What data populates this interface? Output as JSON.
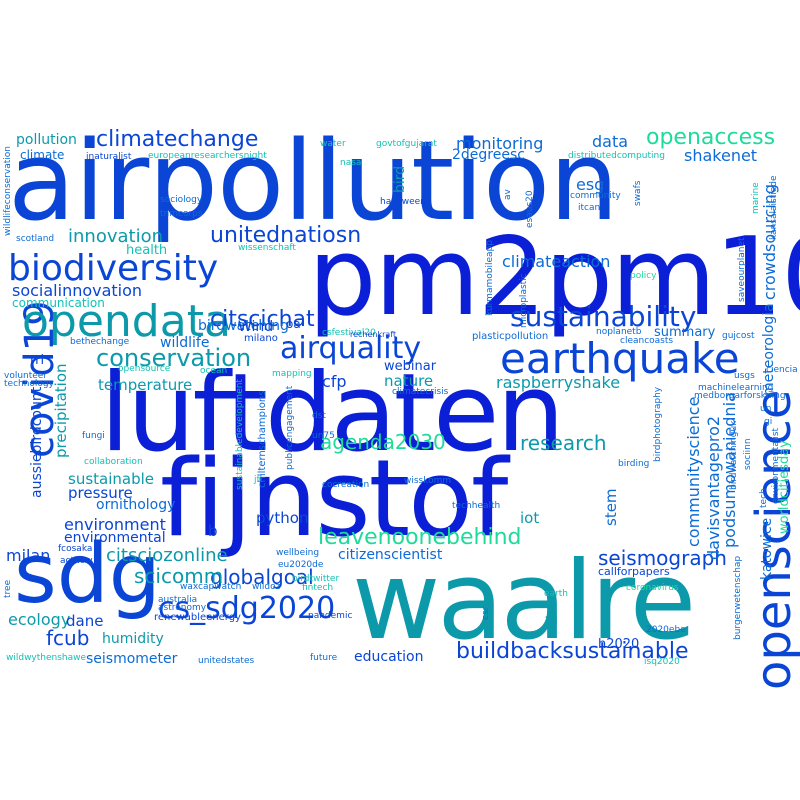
{
  "colors": {
    "blue_dark": "#0a1fd6",
    "blue": "#0a45d6",
    "blue_mid": "#0c6bd6",
    "teal": "#0c9aab",
    "aqua": "#12c2b4",
    "mint": "#1edb9a"
  },
  "words": {
    "airpollution": "airpollution",
    "pm2pm10": "pm2pm10",
    "luftdaten": "luftdaten",
    "fijnstof": "fijnstof",
    "waalre": "waalre",
    "sdg": "sdg",
    "openscience": "openscience",
    "earthquake": "earthquake",
    "opendata": "opendata",
    "biodiversity": "biodiversity",
    "covid19": "covid19",
    "climatechange": "climatechange",
    "openaccess": "openaccess",
    "unitednatiosn": "unitednatiosn",
    "airquality": "airquality",
    "sustainability": "sustainability",
    "citscichat": "citscichat",
    "conservation": "conservation",
    "innovation": "innovation",
    "monitoring": "monitoring",
    "data": "data",
    "shakenet": "shakenet",
    "bird": "bird",
    "esg": "esg",
    "crowdsourcing": "crowdsourcing",
    "climateaction": "climateaction",
    "meteorologia": "meteorologia",
    "cs_sdg2020": "cs_sdg2020",
    "buildbacksustainable": "buildbacksustainable",
    "leavenoonebehind": "leavenoonebehind",
    "seismograph": "seismograph",
    "globalgoal": "globalgoal",
    "scicomm": "scicomm",
    "agenda2030": "agenda2030",
    "research": "research",
    "citsciozonline": "citsciozonline",
    "raspberryshake": "raspberryshake",
    "communityscience": "communityscience",
    "davisvantagepro2": "davisvantagepro2",
    "podsumowaniednia": "podsumowaniednia",
    "katowice": "katowice",
    "worldcitiesday": "worldcitiesday",
    "fcub": "fcub",
    "humidity": "humidity",
    "education": "education",
    "seismometer": "seismometer",
    "ecology": "ecology",
    "dane": "dane",
    "milan": "milan",
    "environment": "environment",
    "environmental": "environmental",
    "sustainable": "sustainable",
    "pressure": "pressure",
    "ornithology": "ornithology",
    "precipitation": "precipitation",
    "aussiebirdcount": "aussiebirdcount",
    "temperature": "temperature",
    "cfp": "cfp",
    "nature": "nature",
    "webinar": "webinar",
    "wildlife": "wildlife",
    "birdwatching": "birdwatching",
    "socialinnovation": "socialinnovation",
    "communication": "communication",
    "health": "health",
    "python": "python",
    "stem": "stem",
    "iot": "iot",
    "ai": "ai",
    "h2020": "h2020",
    "summary": "summary",
    "citizenscientist": "citizenscientist",
    "pollution": "pollution",
    "climate": "climate",
    "2degreesc": "2degreesc",
    "rri": "rri",
    "wind": "Wind",
    "oa": "oa",
    "b": "b",
    "water": "water",
    "csfestival20": "csfestival20",
    "govtofgujarat": "govtofgujarat",
    "inaturalist": "inaturalist",
    "europeanresearchersnight": "europeanresearchersnight",
    "distributedcomputing": "distributedcomputing",
    "nasa": "nasa",
    "sociology": "sociology",
    "halloween": "halloween",
    "tnmcorps": "tnmcorps",
    "community": "community",
    "itcan": "itcan",
    "swafs": "swafs",
    "marine": "marine",
    "kansalaistiede": "kansalaistiede",
    "wissenschaft": "wissenschaft",
    "scotland": "scotland",
    "wildlifeconservation": "wildlifeconservation",
    "milano": "milano",
    "rechenkraft": "rechenkraft",
    "noplanetb": "noplanetb",
    "plasticpollution": "plasticpollution",
    "cleancoasts": "cleancoasts",
    "gujcost": "gujcost",
    "policy": "policy",
    "saveourplanet": "saveourplanet",
    "microplastic": "microplastic",
    "kurmamobileapp": "kurmamobileapp",
    "esaus20": "esaus20",
    "av": "av",
    "bethechange": "bethechange",
    "volunteer": "volunteer",
    "technology": "technology",
    "opensource": "opensource",
    "ocean": "ocean",
    "mapping": "mapping",
    "climatecrisis": "climatecrisis",
    "usgs": "usgs",
    "ciencia": "ciencia",
    "machinelearning": "machinelearning",
    "medborgarforskning": "medborgarforskning",
    "un": "un",
    "gi": "gi",
    "tech": "tech",
    "environmentalist": "environmentalist",
    "sociinn": "sociinn",
    "birdwatchinguk": "birdwatchinguk",
    "birdphotography": "birdphotography",
    "birding": "birding",
    "dst": "dst",
    "un75": "un75",
    "fungi": "fungi",
    "sustainabledevelopment": "sustainabledevelopment",
    "publicengagement": "publicengagement",
    "chilternschampions": "chilternschampions",
    "collaboration": "collaboration",
    "jfl": "jfl",
    "cocreation": "cocreation",
    "wisskomm": "wisskomm",
    "techhealth": "techhealth",
    "fcosaka": "fcosaka",
    "actnow": "actnow",
    "wellbeing": "wellbeing",
    "eu2020de": "eu2020de",
    "waxcapwatch": "waxcapwatch",
    "wildoz": "wildoz",
    "tree": "tree",
    "australia": "australia",
    "astronomy": "astronomy",
    "birdtwitter": "birdtwitter",
    "fintech": "fintech",
    "csr": "csr",
    "callforpapers": "callforpapers",
    "coronavirus": "coronavirus",
    "renewableenergy": "renewableenergy",
    "pandemic": "pandemic",
    "earth": "earth",
    "2020ebe": "2020ebe",
    "burgerwetenschap": "burgerwetenschap",
    "isq2020": "isq2020",
    "wildwythenshawe": "wildwythenshawe",
    "unitedstates": "unitedstates",
    "future": "future"
  }
}
